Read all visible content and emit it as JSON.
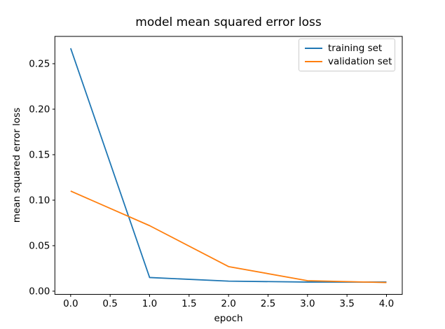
{
  "chart_data": {
    "type": "line",
    "title": "model mean squared error loss",
    "xlabel": "epoch",
    "ylabel": "mean squared error loss",
    "x": [
      0,
      1,
      2,
      3,
      4
    ],
    "series": [
      {
        "name": "training set",
        "color": "#1f77b4",
        "values": [
          0.267,
          0.015,
          0.011,
          0.01,
          0.01
        ]
      },
      {
        "name": "validation set",
        "color": "#ff7f0e",
        "values": [
          0.11,
          0.072,
          0.027,
          0.0115,
          0.0095
        ]
      }
    ],
    "xlim": [
      -0.2,
      4.2
    ],
    "ylim": [
      -0.0035,
      0.28
    ],
    "xticks": {
      "values": [
        0,
        0.5,
        1,
        1.5,
        2,
        2.5,
        3,
        3.5,
        4
      ],
      "labels": [
        "0.0",
        "0.5",
        "1.0",
        "1.5",
        "2.0",
        "2.5",
        "3.0",
        "3.5",
        "4.0"
      ]
    },
    "yticks": {
      "values": [
        0,
        0.05,
        0.1,
        0.15,
        0.2,
        0.25
      ],
      "labels": [
        "0.00",
        "0.05",
        "0.10",
        "0.15",
        "0.20",
        "0.25"
      ]
    },
    "grid": false,
    "legend": {
      "position": "upper right",
      "entries": [
        "training set",
        "validation set"
      ]
    }
  }
}
